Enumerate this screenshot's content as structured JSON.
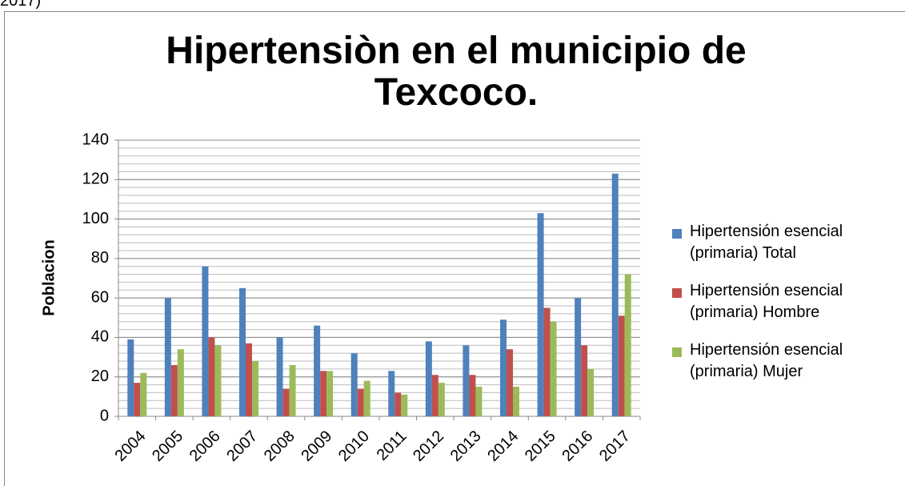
{
  "caption": "2017)",
  "chart_data": {
    "type": "bar",
    "title": "Hipertensiòn en el municipio de Texcoco.",
    "y_label": "Poblacion",
    "categories": [
      "2004",
      "2005",
      "2006",
      "2007",
      "2008",
      "2009",
      "2010",
      "2011",
      "2012",
      "2013",
      "2014",
      "2015",
      "2016",
      "2017"
    ],
    "series": [
      {
        "name": "Hipertensión esencial (primaria) Total",
        "color": "#4f81bd",
        "values": [
          39,
          60,
          76,
          65,
          40,
          46,
          32,
          23,
          38,
          36,
          49,
          103,
          60,
          123
        ]
      },
      {
        "name": "Hipertensión esencial (primaria) Hombre",
        "color": "#c0504d",
        "values": [
          17,
          26,
          40,
          37,
          14,
          23,
          14,
          12,
          21,
          21,
          34,
          55,
          36,
          51
        ]
      },
      {
        "name": "Hipertensión esencial (primaria) Mujer",
        "color": "#9bbb59",
        "values": [
          22,
          34,
          36,
          28,
          26,
          23,
          18,
          11,
          17,
          15,
          15,
          48,
          24,
          72
        ]
      }
    ],
    "ylim": [
      0,
      140
    ],
    "yticks": [
      0,
      20,
      40,
      60,
      80,
      100,
      120,
      140
    ],
    "grid": true,
    "minor_grid_step": 4,
    "legend": "right"
  }
}
